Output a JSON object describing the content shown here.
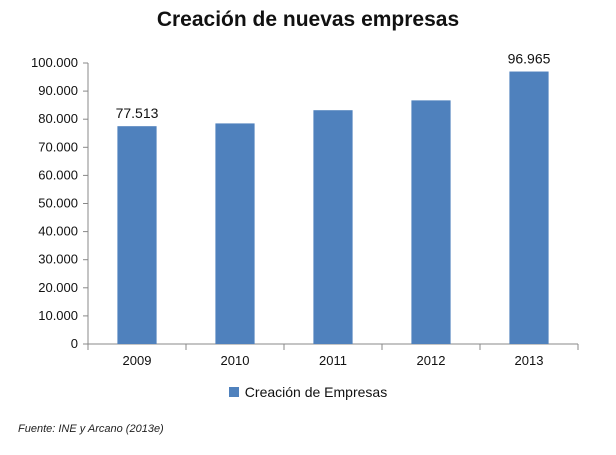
{
  "chart_data": {
    "type": "bar",
    "title": "Creación de nuevas empresas",
    "categories": [
      "2009",
      "2010",
      "2011",
      "2012",
      "2013"
    ],
    "series": [
      {
        "name": "Creación de Empresas",
        "values": [
          77513,
          78500,
          83200,
          86700,
          96965
        ],
        "color": "#4F81BD"
      }
    ],
    "data_labels": [
      {
        "category": "2009",
        "text": "77.513"
      },
      {
        "category": "2013",
        "text": "96.965"
      }
    ],
    "ylim": [
      0,
      100000
    ],
    "yticks": [
      0,
      10000,
      20000,
      30000,
      40000,
      50000,
      60000,
      70000,
      80000,
      90000,
      100000
    ],
    "ytick_labels": [
      "0",
      "10.000",
      "20.000",
      "30.000",
      "40.000",
      "50.000",
      "60.000",
      "70.000",
      "80.000",
      "90.000",
      "100.000"
    ],
    "grid": false,
    "legend_position": "bottom",
    "xlabel": "",
    "ylabel": ""
  },
  "source_note": "Fuente: INE y Arcano (2013e)"
}
